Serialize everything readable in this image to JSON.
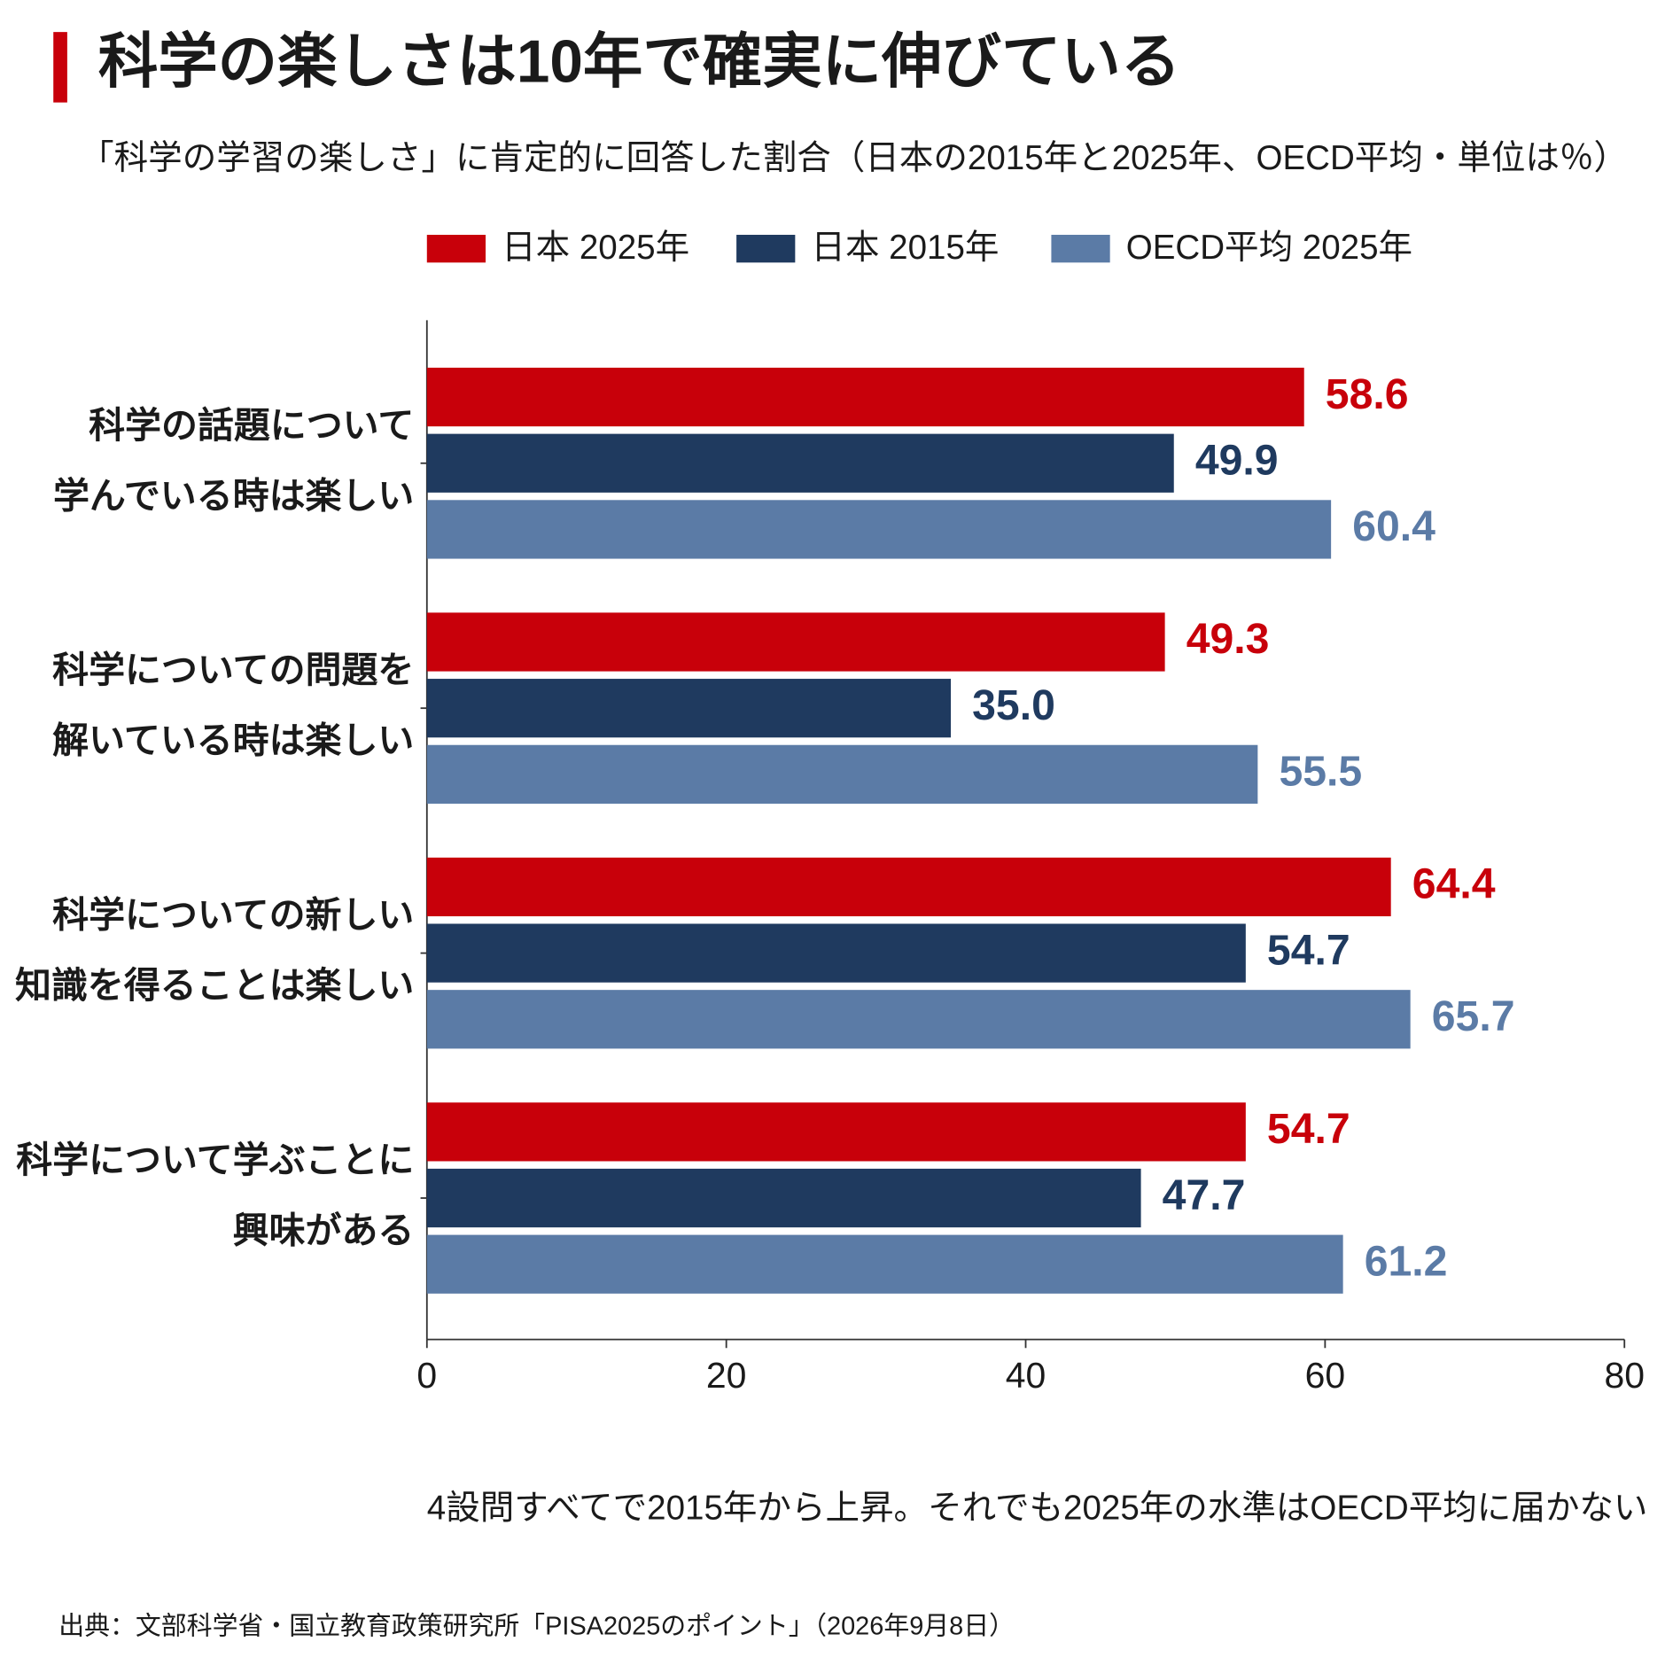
{
  "chart_data": {
    "type": "barh",
    "title": "科学の楽しさは10年で確実に伸びている",
    "subtitle": "「科学の学習の楽しさ」に肯定的に回答した割合（日本の2015年と2025年、OECD平均・単位は％）",
    "categories": [
      [
        "科学の話題について",
        "学んでいる時は楽しい"
      ],
      [
        "科学についての問題を",
        "解いている時は楽しい"
      ],
      [
        "科学についての新しい",
        "知識を得ることは楽しい"
      ],
      [
        "科学について学ぶことに",
        "興味がある"
      ]
    ],
    "series": [
      {
        "name": "日本 2025年",
        "color": "#c8000a",
        "values": [
          58.6,
          49.3,
          64.4,
          54.7
        ]
      },
      {
        "name": "日本 2015年",
        "color": "#1f3a5f",
        "values": [
          49.9,
          35.0,
          54.7,
          47.7
        ],
        "value_labels": [
          "49.9",
          "35.0",
          "54.7",
          "47.7"
        ]
      },
      {
        "name": "OECD平均 2025年",
        "color": "#5b7ba6",
        "values": [
          60.4,
          55.5,
          65.7,
          61.2
        ]
      }
    ],
    "xlim": [
      0,
      80
    ],
    "xticks": [
      0,
      20,
      40,
      60,
      80
    ],
    "grid": false,
    "legend": "top",
    "annotation": "4設問すべてで2015年から上昇。それでも2025年の水準はOECD平均に届かない",
    "source": "出典：文部科学省・国立教育政策研究所「PISA2025のポイント」（2026年9月8日）"
  }
}
